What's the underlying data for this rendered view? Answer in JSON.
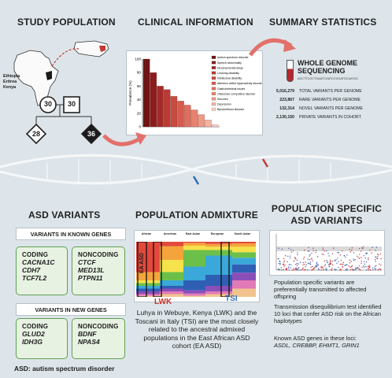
{
  "headers": {
    "study_population": "STUDY POPULATION",
    "clinical_information": "CLINICAL INFORMATION",
    "summary_statistics": "SUMMARY STATISTICS",
    "asd_variants": "ASD VARIANTS",
    "population_admixture": "POPULATION ADMIXTURE",
    "population_specific": "POPULATION SPECIFIC ASD VARIANTS"
  },
  "study_population": {
    "countries": [
      "Ethiopia",
      "Eritrea",
      "Kenya"
    ],
    "father_age": "30",
    "mother_age": "30",
    "child1_age": "28",
    "child2_age": "36"
  },
  "chart_data": {
    "type": "bar",
    "ylabel": "Prevalence (%)",
    "ylim": [
      0,
      100
    ],
    "yticks": [
      0,
      20,
      40,
      60,
      80,
      100
    ],
    "categories": [
      "Autism spectrum disorder",
      "Speech abnormality",
      "Developmental delay",
      "Learning disability",
      "Intellectual disability",
      "Attention deficit hyperactivity disorder",
      "Gastrointestinal issues",
      "Obsessive compulsive disorder",
      "Seizures",
      "Depression",
      "Bipolar/Mood disorder"
    ],
    "values": [
      100,
      80,
      60,
      55,
      45,
      38,
      32,
      25,
      18,
      10,
      3
    ],
    "colors": [
      "#6e1414",
      "#8a1c1c",
      "#a42a28",
      "#bb3a34",
      "#c84b40",
      "#d45b4d",
      "#de6e5d",
      "#e6826f",
      "#ed9986",
      "#f3b3a3",
      "#f8cfc4"
    ]
  },
  "summary": {
    "wgs_title": "WHOLE GENOME SEQUENCING",
    "dna_sequence": "AGCTTCGCTGAATCGATCCGGATGCAATGC",
    "rows": [
      {
        "value": "5,016,279",
        "label": "TOTAL VARIANTS PER GENOME"
      },
      {
        "value": "223,867",
        "label": "RARE VARIANTS PER GENOME"
      },
      {
        "value": "132,314",
        "label": "NOVEL VARIANTS PER GENOME"
      },
      {
        "value": "2,130,150",
        "label": "PRIVATE VARIANTS IN COHORT"
      }
    ]
  },
  "asd_variants": {
    "known_title": "VARIANTS IN KNOWN GENES",
    "known_coding_label": "CODING",
    "known_coding_genes": [
      "CACNA1C",
      "CDH7",
      "TCF7L2"
    ],
    "known_noncoding_label": "NONCODING",
    "known_noncoding_genes": [
      "CTCF",
      "MED13L",
      "PTPN11"
    ],
    "new_title": "VARIANTS IN NEW GENES",
    "new_coding_label": "CODING",
    "new_coding_genes": [
      "GLUD2",
      "IDH3G"
    ],
    "new_noncoding_label": "NONCODING",
    "new_noncoding_genes": [
      "BDNF",
      "NPAS4"
    ],
    "footnote": "ASD: autism spectrum disorder"
  },
  "admixture": {
    "groups": [
      "African",
      "American",
      "East Asian",
      "European",
      "South Asian"
    ],
    "ea_asd_label": "EA ASD",
    "lwk_label": "LWK",
    "tsi_label": "TSI",
    "description": "Luhya in Webuye, Kenya (LWK) and the Toscani in Italy (TSI) are the most closely related to the ancestral admixed populations in the East African ASD cohort (EA ASD)"
  },
  "pop_specific": {
    "text1": "Population specific variants are preferentially transmitted to affected offspring",
    "text2": "Transmission disequilibrium test identified 10 loci that confer ASD risk on the African haplotypes",
    "text3_prefix": "Known ASD genes in these loci:",
    "text3_genes": "ASDL, CREBBP, EHMT1, GRIN1"
  }
}
